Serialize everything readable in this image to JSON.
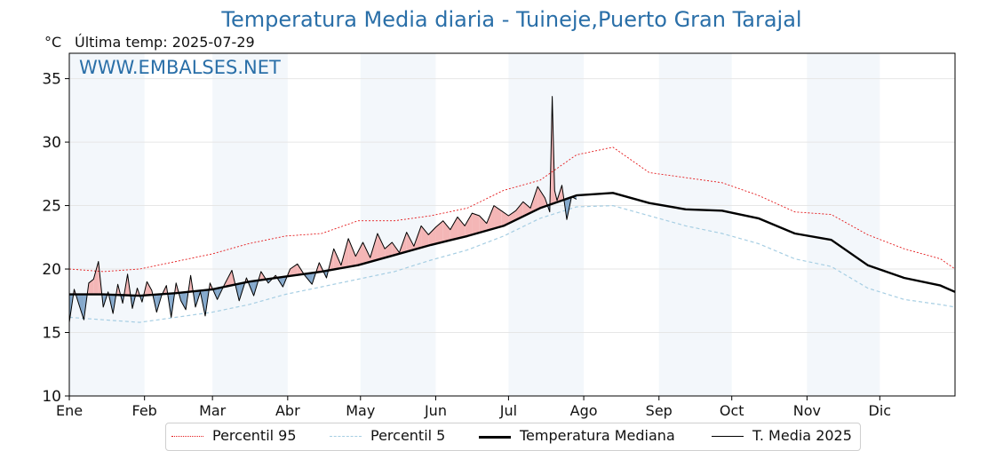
{
  "header": {
    "title": "Temperatura Media diaria - Tuineje,Puerto Gran Tarajal",
    "unit": "°C",
    "last_temp": "Última temp: 2025-07-29",
    "watermark": "WWW.EMBALSES.NET"
  },
  "legend": [
    {
      "label": "Percentil 95",
      "color": "#e41a1c",
      "style": "dotted"
    },
    {
      "label": "Percentil 5",
      "color": "#a6cee3",
      "style": "dashed"
    },
    {
      "label": "Temperatura Mediana",
      "color": "#000000",
      "style": "thick"
    },
    {
      "label": "T. Media 2025",
      "color": "#000000",
      "style": "thin"
    }
  ],
  "colors": {
    "above_fill": "#f4b6b6",
    "below_fill": "#85a9cc",
    "band": "#f3f7fb",
    "title": "#2a6fa8"
  },
  "chart_data": {
    "type": "line",
    "title": "Temperatura Media diaria - Tuineje,Puerto Gran Tarajal",
    "ylabel": "°C",
    "ylim": [
      10,
      37
    ],
    "yticks": [
      10,
      15,
      20,
      25,
      30,
      35
    ],
    "xlim": [
      1,
      366
    ],
    "months": [
      "Ene",
      "Feb",
      "Mar",
      "Abr",
      "May",
      "Jun",
      "Jul",
      "Ago",
      "Sep",
      "Oct",
      "Nov",
      "Dic"
    ],
    "month_start_days": [
      1,
      32,
      60,
      91,
      121,
      152,
      182,
      213,
      244,
      274,
      305,
      335
    ],
    "grid": true,
    "legend_position": "bottom",
    "series": [
      {
        "name": "Temperatura Mediana",
        "x": [
          1,
          15,
          30,
          45,
          60,
          75,
          90,
          105,
          120,
          135,
          150,
          165,
          180,
          195,
          210,
          225,
          240,
          255,
          270,
          285,
          300,
          315,
          330,
          345,
          360,
          366
        ],
        "y": [
          18.0,
          18.0,
          17.9,
          18.1,
          18.4,
          19.0,
          19.4,
          19.8,
          20.3,
          21.1,
          21.9,
          22.6,
          23.4,
          24.8,
          25.8,
          26.0,
          25.2,
          24.7,
          24.6,
          24.0,
          22.8,
          22.3,
          20.3,
          19.3,
          18.7,
          18.2
        ]
      },
      {
        "name": "Percentil 95",
        "x": [
          1,
          15,
          30,
          45,
          60,
          75,
          90,
          105,
          120,
          135,
          150,
          165,
          180,
          195,
          210,
          225,
          240,
          255,
          270,
          285,
          300,
          315,
          330,
          345,
          360,
          366
        ],
        "y": [
          20.0,
          19.8,
          20.0,
          20.6,
          21.2,
          22.0,
          22.6,
          22.8,
          23.8,
          23.8,
          24.2,
          24.8,
          26.2,
          27.0,
          29.0,
          29.6,
          27.6,
          27.2,
          26.8,
          25.8,
          24.5,
          24.3,
          22.7,
          21.6,
          20.8,
          20.0
        ]
      },
      {
        "name": "Percentil 5",
        "x": [
          1,
          15,
          30,
          45,
          60,
          75,
          90,
          105,
          120,
          135,
          150,
          165,
          180,
          195,
          210,
          225,
          240,
          255,
          270,
          285,
          300,
          315,
          330,
          345,
          360,
          366
        ],
        "y": [
          16.2,
          16.0,
          15.8,
          16.2,
          16.6,
          17.2,
          18.0,
          18.6,
          19.2,
          19.8,
          20.7,
          21.5,
          22.6,
          24.0,
          24.9,
          25.0,
          24.2,
          23.4,
          22.8,
          22.0,
          20.8,
          20.2,
          18.5,
          17.6,
          17.2,
          17.0
        ]
      },
      {
        "name": "T. Media 2025",
        "x": [
          1,
          3,
          5,
          7,
          9,
          11,
          13,
          15,
          17,
          19,
          21,
          23,
          25,
          27,
          29,
          31,
          33,
          35,
          37,
          39,
          41,
          43,
          45,
          47,
          49,
          51,
          53,
          55,
          57,
          59,
          62,
          65,
          68,
          71,
          74,
          77,
          80,
          83,
          86,
          89,
          92,
          95,
          98,
          101,
          104,
          107,
          110,
          113,
          116,
          119,
          122,
          125,
          128,
          131,
          134,
          137,
          140,
          143,
          146,
          149,
          152,
          155,
          158,
          161,
          164,
          167,
          170,
          173,
          176,
          179,
          182,
          185,
          188,
          191,
          194,
          197,
          199,
          200,
          201,
          202,
          204,
          206,
          208,
          210
        ],
        "y": [
          15.8,
          18.4,
          17.2,
          16.0,
          18.9,
          19.2,
          20.6,
          17.0,
          18.2,
          16.5,
          18.8,
          17.3,
          19.6,
          16.9,
          18.5,
          17.4,
          19.0,
          18.3,
          16.6,
          17.9,
          18.7,
          16.2,
          18.9,
          17.5,
          16.8,
          19.5,
          17.0,
          18.2,
          16.3,
          18.9,
          17.6,
          18.8,
          19.9,
          17.5,
          19.3,
          17.9,
          19.8,
          18.9,
          19.5,
          18.6,
          20.0,
          20.4,
          19.5,
          18.8,
          20.5,
          19.3,
          21.6,
          20.3,
          22.4,
          21.0,
          22.1,
          20.9,
          22.8,
          21.6,
          22.1,
          21.3,
          22.9,
          21.8,
          23.4,
          22.7,
          23.3,
          23.8,
          23.1,
          24.1,
          23.4,
          24.4,
          24.2,
          23.6,
          25.0,
          24.6,
          24.2,
          24.6,
          25.3,
          24.8,
          26.5,
          25.6,
          24.5,
          33.6,
          26.2,
          25.4,
          26.6,
          23.9,
          25.7,
          25.5
        ]
      }
    ]
  }
}
